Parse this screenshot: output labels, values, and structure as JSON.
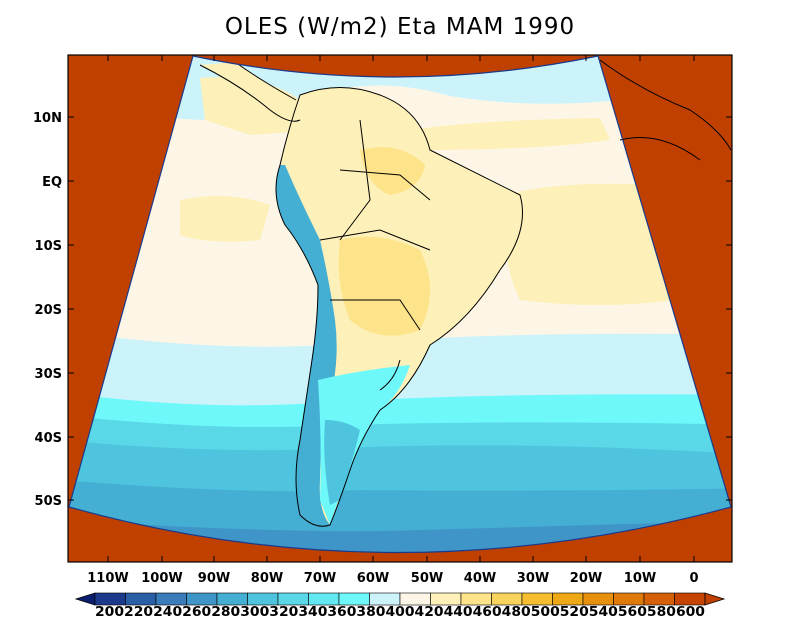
{
  "title": "OLES (W/m2) Eta MAM 1990",
  "lat_labels": [
    "10N",
    "EQ",
    "10S",
    "20S",
    "30S",
    "40S",
    "50S"
  ],
  "lon_labels": [
    "110W",
    "100W",
    "90W",
    "80W",
    "70W",
    "60W",
    "50W",
    "40W",
    "30W",
    "20W",
    "10W",
    "0"
  ],
  "colorbar": {
    "levels": [
      200,
      220,
      240,
      260,
      280,
      300,
      320,
      340,
      360,
      380,
      400,
      420,
      440,
      460,
      480,
      500,
      520,
      540,
      560,
      580,
      600
    ],
    "colors": [
      "#0b1f6e",
      "#1b3a8c",
      "#2a5fa8",
      "#3a7dba",
      "#3f95c8",
      "#45aed3",
      "#4ec4df",
      "#5ad8e8",
      "#62e8f0",
      "#6ff8fa",
      "#cdf3fa",
      "#fdf6e6",
      "#fdf0b8",
      "#fde38a",
      "#f8d35e",
      "#f5be30",
      "#eea815",
      "#e7900e",
      "#df7a0a",
      "#d66008",
      "#c54402",
      "#c04000"
    ],
    "labels_text": "200220240260280300320340360380400420440460480500520540560580600"
  },
  "out_of_domain_color": "#c04000"
}
